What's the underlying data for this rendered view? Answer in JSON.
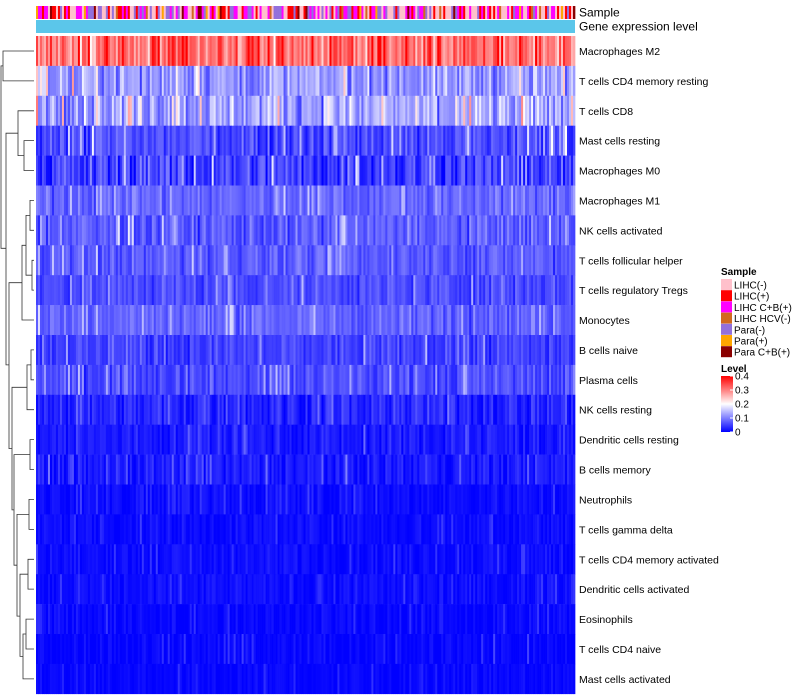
{
  "chart_data": {
    "type": "heatmap",
    "title": "",
    "annotation_tracks": [
      "Sample",
      "Gene expression level"
    ],
    "rows": [
      {
        "name": "Macrophages M2",
        "mean": 0.31,
        "spread": 0.09
      },
      {
        "name": "T cells CD4 memory resting",
        "mean": 0.12,
        "spread": 0.07
      },
      {
        "name": "T cells CD8",
        "mean": 0.13,
        "spread": 0.08
      },
      {
        "name": "Mast cells resting",
        "mean": 0.06,
        "spread": 0.06
      },
      {
        "name": "Macrophages M0",
        "mean": 0.05,
        "spread": 0.07
      },
      {
        "name": "Macrophages M1",
        "mean": 0.08,
        "spread": 0.04
      },
      {
        "name": "NK cells activated",
        "mean": 0.07,
        "spread": 0.05
      },
      {
        "name": "T cells follicular helper",
        "mean": 0.07,
        "spread": 0.04
      },
      {
        "name": "T cells regulatory  Tregs",
        "mean": 0.06,
        "spread": 0.04
      },
      {
        "name": "Monocytes",
        "mean": 0.08,
        "spread": 0.04
      },
      {
        "name": "B cells naive",
        "mean": 0.05,
        "spread": 0.04
      },
      {
        "name": "Plasma cells",
        "mean": 0.06,
        "spread": 0.04
      },
      {
        "name": "NK cells resting",
        "mean": 0.03,
        "spread": 0.04
      },
      {
        "name": "Dendritic cells resting",
        "mean": 0.02,
        "spread": 0.03
      },
      {
        "name": "B cells memory",
        "mean": 0.02,
        "spread": 0.03
      },
      {
        "name": "Neutrophils",
        "mean": 0.01,
        "spread": 0.02
      },
      {
        "name": "T cells gamma delta",
        "mean": 0.01,
        "spread": 0.02
      },
      {
        "name": "T cells CD4 memory activated",
        "mean": 0.01,
        "spread": 0.02
      },
      {
        "name": "Dendritic cells activated",
        "mean": 0.01,
        "spread": 0.02
      },
      {
        "name": "Eosinophils",
        "mean": 0.005,
        "spread": 0.02
      },
      {
        "name": "T cells CD4 naive",
        "mean": 0.005,
        "spread": 0.02
      },
      {
        "name": "Mast cells activated",
        "mean": 0.005,
        "spread": 0.015
      }
    ],
    "n_samples": 270,
    "value_range": [
      0,
      0.4
    ],
    "legend_sample": {
      "title": "Sample",
      "entries": [
        {
          "label": "LIHC(-)",
          "color": "#ffc0cb"
        },
        {
          "label": "LIHC(+)",
          "color": "#ff0000"
        },
        {
          "label": "LIHC C+B(+)",
          "color": "#ff00ff"
        },
        {
          "label": "LIHC HCV(-)",
          "color": "#d2691e"
        },
        {
          "label": "Para(-)",
          "color": "#9370db"
        },
        {
          "label": "Para(+)",
          "color": "#ffa500"
        },
        {
          "label": "Para C+B(+)",
          "color": "#8b0000"
        }
      ]
    },
    "legend_level": {
      "title": "Level",
      "ticks": [
        "0.4",
        "0.3",
        "0.2",
        "0.1",
        "0"
      ],
      "tick_values": [
        0.4,
        0.3,
        0.2,
        0.1,
        0
      ]
    },
    "gene_expression_color": "#5bc6ea",
    "color_low": "#0000ff",
    "color_mid": "#ffffff",
    "color_high": "#ff0000"
  }
}
